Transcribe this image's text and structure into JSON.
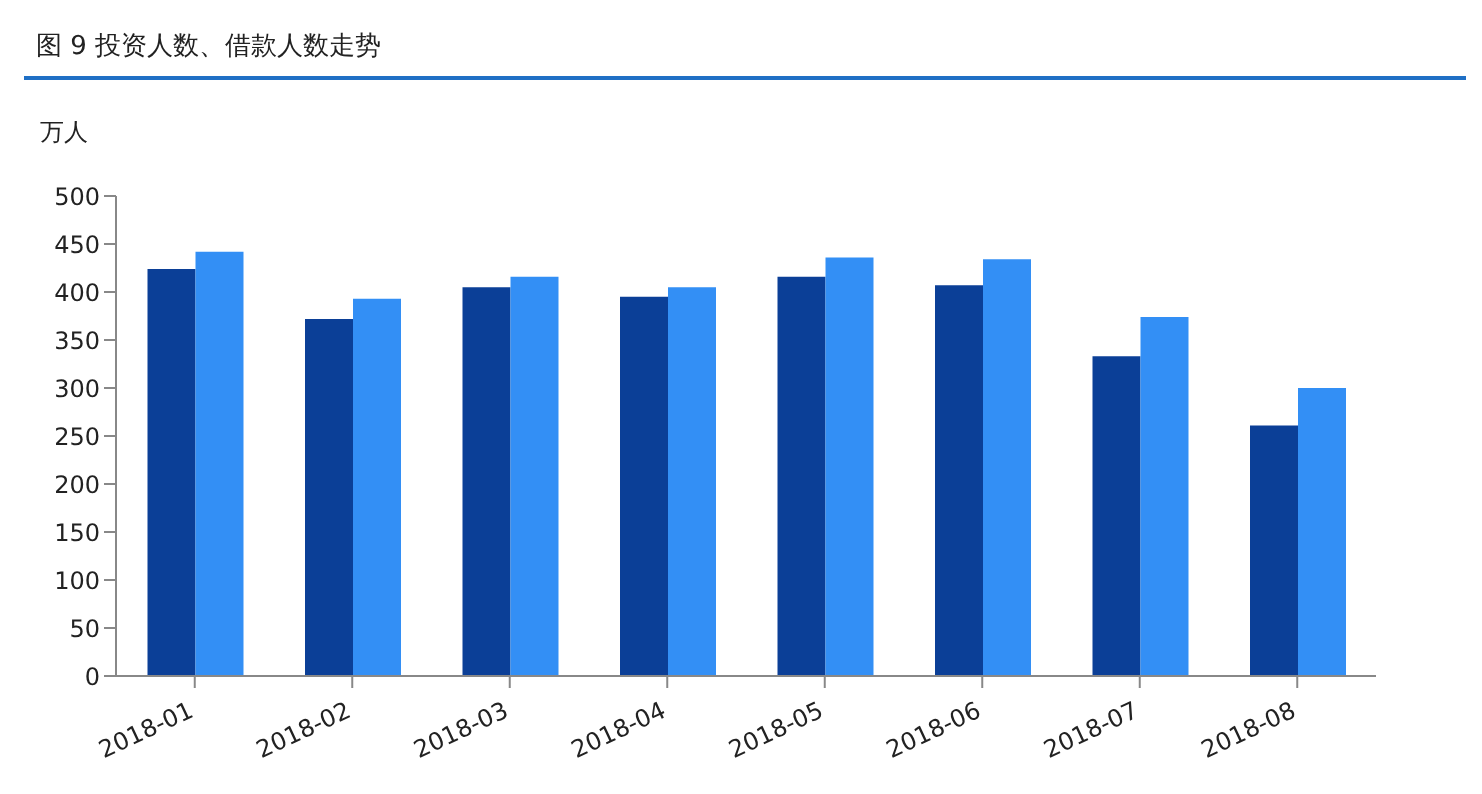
{
  "chart_data": {
    "type": "bar",
    "title": "图 9   投资人数、借款人数走势",
    "ylabel": "万人",
    "categories": [
      "2018-01",
      "2018-02",
      "2018-03",
      "2018-04",
      "2018-05",
      "2018-06",
      "2018-07",
      "2018-08"
    ],
    "series": [
      {
        "color": "#0b3f97",
        "values": [
          424,
          372,
          405,
          395,
          416,
          407,
          333,
          261
        ]
      },
      {
        "color": "#338ff5",
        "values": [
          442,
          393,
          416,
          405,
          436,
          434,
          374,
          300
        ]
      }
    ],
    "ylim": [
      0,
      500
    ],
    "yticks": [
      0,
      50,
      100,
      150,
      200,
      250,
      300,
      350,
      400,
      450,
      500
    ],
    "grid": false,
    "legend": false
  }
}
